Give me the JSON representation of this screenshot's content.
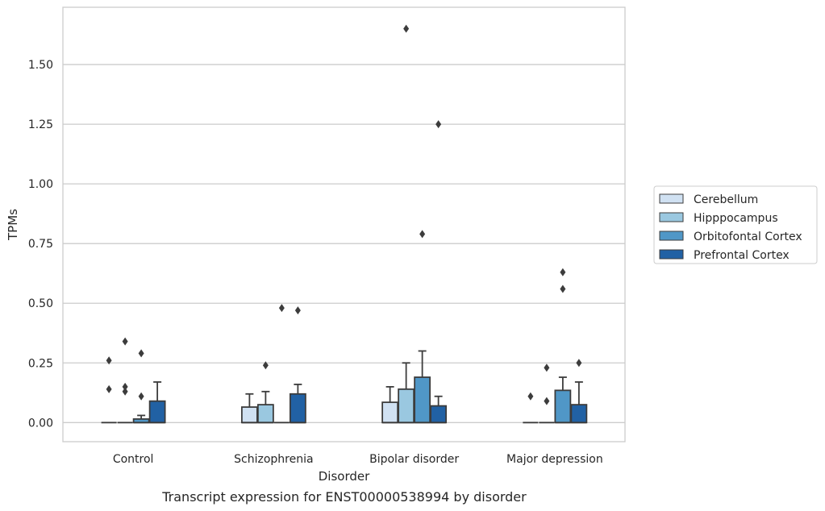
{
  "caption": "Transcript expression for ENST00000538994 by disorder",
  "chart_data": {
    "type": "box",
    "xlabel": "Disorder",
    "ylabel": "TPMs",
    "ylim": [
      -0.08,
      1.74
    ],
    "yticks": [
      "0.00",
      "0.25",
      "0.50",
      "0.75",
      "1.00",
      "1.25",
      "1.50"
    ],
    "categories": [
      "Control",
      "Schizophrenia",
      "Bipolar disorder",
      "Major depression"
    ],
    "grid": true,
    "legend_position": "right",
    "series": [
      {
        "name": "Cerebellum",
        "color": "#d0e1f2",
        "boxes": [
          {
            "min": 0,
            "q1": 0,
            "median": 0,
            "q3": 0,
            "max": 0,
            "outliers": [
              0.14,
              0.26
            ]
          },
          {
            "min": 0,
            "q1": 0,
            "median": 0,
            "q3": 0.065,
            "max": 0.12,
            "outliers": []
          },
          {
            "min": 0,
            "q1": 0,
            "median": 0,
            "q3": 0.085,
            "max": 0.15,
            "outliers": []
          },
          {
            "min": 0,
            "q1": 0,
            "median": 0,
            "q3": 0,
            "max": 0,
            "outliers": [
              0.11
            ]
          }
        ]
      },
      {
        "name": "Hipppocampus",
        "color": "#9ac8e0",
        "boxes": [
          {
            "min": 0,
            "q1": 0,
            "median": 0,
            "q3": 0,
            "max": 0,
            "outliers": [
              0.13,
              0.15,
              0.34
            ]
          },
          {
            "min": 0,
            "q1": 0,
            "median": 0,
            "q3": 0.075,
            "max": 0.13,
            "outliers": [
              0.24
            ]
          },
          {
            "min": 0,
            "q1": 0,
            "median": 0,
            "q3": 0.14,
            "max": 0.25,
            "outliers": [
              1.65
            ]
          },
          {
            "min": 0,
            "q1": 0,
            "median": 0,
            "q3": 0,
            "max": 0,
            "outliers": [
              0.09,
              0.23
            ]
          }
        ]
      },
      {
        "name": "Orbitofontal Cortex",
        "color": "#5097c7",
        "boxes": [
          {
            "min": 0,
            "q1": 0,
            "median": 0,
            "q3": 0.015,
            "max": 0.03,
            "outliers": [
              0.11,
              0.29
            ]
          },
          {
            "min": 0,
            "q1": 0,
            "median": 0,
            "q3": 0,
            "max": 0,
            "outliers": [
              0.48
            ]
          },
          {
            "min": 0,
            "q1": 0,
            "median": 0,
            "q3": 0.19,
            "max": 0.3,
            "outliers": [
              0.79
            ]
          },
          {
            "min": 0,
            "q1": 0,
            "median": 0,
            "q3": 0.135,
            "max": 0.19,
            "outliers": [
              0.56,
              0.63
            ]
          }
        ]
      },
      {
        "name": "Prefrontal Cortex",
        "color": "#2161a4",
        "boxes": [
          {
            "min": 0,
            "q1": 0,
            "median": 0,
            "q3": 0.09,
            "max": 0.17,
            "outliers": []
          },
          {
            "min": 0,
            "q1": 0,
            "median": 0,
            "q3": 0.12,
            "max": 0.16,
            "outliers": [
              0.47
            ]
          },
          {
            "min": 0,
            "q1": 0,
            "median": 0,
            "q3": 0.07,
            "max": 0.11,
            "outliers": [
              1.25
            ]
          },
          {
            "min": 0,
            "q1": 0,
            "median": 0,
            "q3": 0.075,
            "max": 0.17,
            "outliers": [
              0.25
            ]
          }
        ]
      }
    ]
  }
}
